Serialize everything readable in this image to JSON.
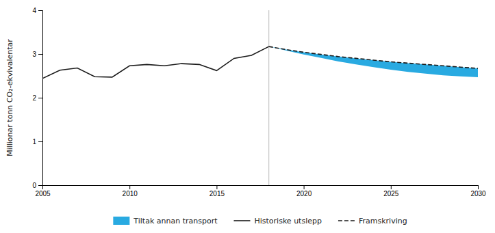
{
  "chart_data": {
    "type": "line",
    "ylabel": "Millionar tonn CO₂-ekvivalentar",
    "xlim": [
      2005,
      2030
    ],
    "ylim": [
      0,
      4
    ],
    "xticks": [
      2005,
      2010,
      2015,
      2020,
      2025,
      2030
    ],
    "yticks": [
      0,
      1,
      2,
      3,
      4
    ],
    "grid": false,
    "legend": "bottom",
    "vline": 2018,
    "series": [
      {
        "name": "Tiltak annan transport",
        "type": "area",
        "color": "#29aae1",
        "x": [
          2018,
          2019,
          2020,
          2021,
          2022,
          2023,
          2024,
          2025,
          2026,
          2027,
          2028,
          2029,
          2030
        ],
        "values": [
          3.17,
          3.1,
          3.04,
          2.99,
          2.94,
          2.9,
          2.86,
          2.82,
          2.79,
          2.76,
          2.73,
          2.7,
          2.67
        ],
        "lower": [
          3.17,
          3.08,
          2.99,
          2.91,
          2.83,
          2.76,
          2.7,
          2.64,
          2.59,
          2.55,
          2.51,
          2.49,
          2.47
        ]
      },
      {
        "name": "Historiske utslepp",
        "type": "line",
        "color": "#1a1a1a",
        "line_style": "solid",
        "x": [
          2005,
          2006,
          2007,
          2008,
          2009,
          2010,
          2011,
          2012,
          2013,
          2014,
          2015,
          2016,
          2017,
          2018
        ],
        "values": [
          2.44,
          2.63,
          2.68,
          2.48,
          2.47,
          2.73,
          2.76,
          2.73,
          2.78,
          2.76,
          2.62,
          2.9,
          2.97,
          3.17
        ]
      },
      {
        "name": "Framskriving",
        "type": "line",
        "color": "#1a1a1a",
        "line_style": "dashed",
        "x": [
          2018,
          2019,
          2020,
          2021,
          2022,
          2023,
          2024,
          2025,
          2026,
          2027,
          2028,
          2029,
          2030
        ],
        "values": [
          3.17,
          3.1,
          3.04,
          2.99,
          2.94,
          2.9,
          2.86,
          2.82,
          2.79,
          2.76,
          2.73,
          2.7,
          2.67
        ]
      }
    ]
  }
}
